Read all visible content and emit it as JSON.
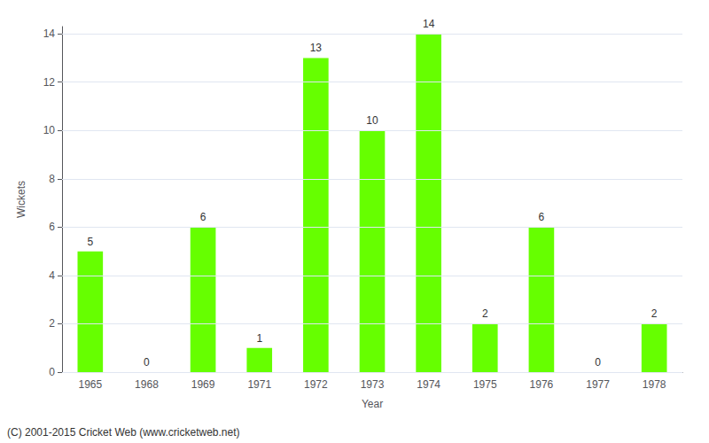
{
  "chart_data": {
    "type": "bar",
    "categories": [
      "1965",
      "1968",
      "1969",
      "1971",
      "1972",
      "1973",
      "1974",
      "1975",
      "1976",
      "1977",
      "1978"
    ],
    "values": [
      5,
      0,
      6,
      1,
      13,
      10,
      14,
      2,
      6,
      0,
      2
    ],
    "color": "#66ff00",
    "xlabel": "Year",
    "ylabel": "Wickets",
    "ylim": [
      0,
      14.3
    ],
    "yticks": [
      0,
      2,
      4,
      6,
      8,
      10,
      12,
      14
    ],
    "grid": true,
    "data_labels": true,
    "annotations": [
      "(C) 2001-2015 Cricket Web (www.cricketweb.net)"
    ]
  }
}
